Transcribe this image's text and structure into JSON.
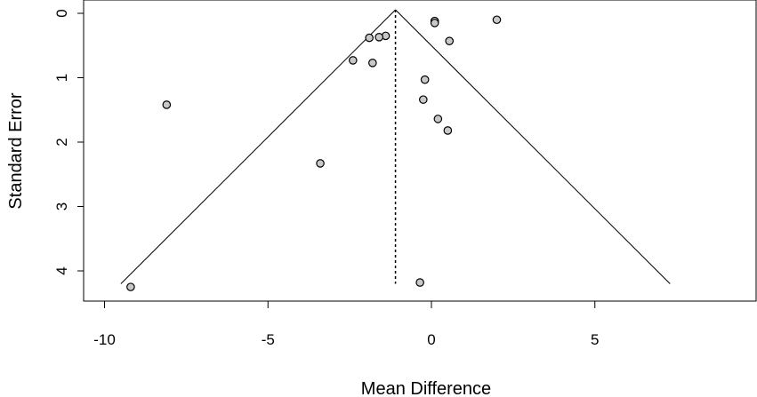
{
  "chart_data": {
    "type": "scatter",
    "xlabel": "Mean Difference",
    "ylabel": "Standard Error",
    "xlim": [
      -10,
      10
    ],
    "ylim": [
      0,
      4.4
    ],
    "y_reversed": true,
    "x_ticks": [
      -10,
      -5,
      0,
      5
    ],
    "x_tick_labels": [
      "-10",
      "-5",
      "0",
      "5"
    ],
    "y_ticks": [
      0,
      1,
      2,
      3,
      4
    ],
    "y_tick_labels": [
      "0",
      "1",
      "2",
      "3",
      "4"
    ],
    "box": "L-shaped bottom and left axes, plot region framed",
    "pooled_estimate": -1.1,
    "funnel": {
      "apex": [
        -1.1,
        0
      ],
      "base_left": [
        -9.5,
        4.2
      ],
      "base_right": [
        7.3,
        4.2
      ]
    },
    "points": [
      {
        "x": 0.1,
        "y": 0.12
      },
      {
        "x": 0.1,
        "y": 0.15
      },
      {
        "x": 2.0,
        "y": 0.1
      },
      {
        "x": -1.4,
        "y": 0.35
      },
      {
        "x": -1.6,
        "y": 0.37
      },
      {
        "x": -1.9,
        "y": 0.38
      },
      {
        "x": 0.55,
        "y": 0.43
      },
      {
        "x": -2.4,
        "y": 0.73
      },
      {
        "x": -1.8,
        "y": 0.77
      },
      {
        "x": -0.2,
        "y": 1.03
      },
      {
        "x": -0.25,
        "y": 1.34
      },
      {
        "x": 0.2,
        "y": 1.64
      },
      {
        "x": 0.5,
        "y": 1.82
      },
      {
        "x": -8.1,
        "y": 1.42
      },
      {
        "x": -3.4,
        "y": 2.33
      },
      {
        "x": -0.35,
        "y": 4.18
      },
      {
        "x": -9.2,
        "y": 4.25
      }
    ],
    "point_fill": "#c8c8c8",
    "point_stroke": "#000000"
  }
}
